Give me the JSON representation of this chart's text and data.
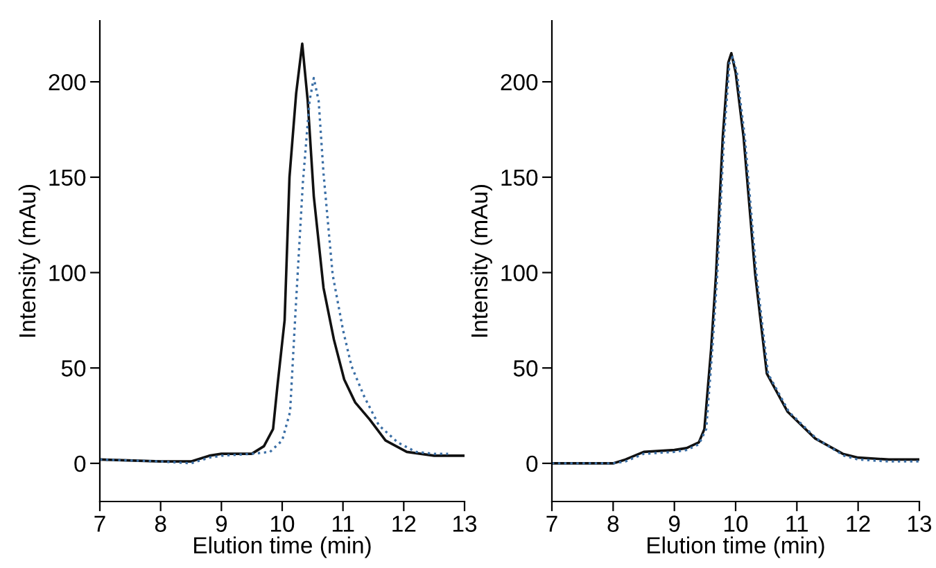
{
  "chart_data": [
    {
      "type": "line",
      "xlabel": "Elution time (min)",
      "ylabel": "Intensity (mAu)",
      "xlim": [
        7,
        13
      ],
      "ylim": [
        -20,
        232
      ],
      "xticks": [
        7,
        8,
        9,
        10,
        11,
        12,
        13
      ],
      "yticks": [
        0,
        50,
        100,
        150,
        200
      ],
      "grid": false,
      "marker": "none",
      "series": [
        {
          "color": "#111111",
          "line_style": "solid",
          "x": [
            7,
            8,
            8.5,
            8.8,
            9,
            9.5,
            9.7,
            9.85,
            9.92,
            10.04,
            10.12,
            10.23,
            10.33,
            10.42,
            10.52,
            10.68,
            10.85,
            11.02,
            11.2,
            11.44,
            11.7,
            12.05,
            12.5,
            13
          ],
          "values": [
            2,
            1,
            1,
            4,
            5,
            5,
            9,
            18,
            40,
            75,
            150,
            194,
            220,
            190,
            140,
            92,
            65,
            44,
            32,
            23,
            12,
            6,
            4,
            4
          ]
        },
        {
          "color": "#3a6ea5",
          "line_style": "dotted",
          "x": [
            7,
            8,
            8.5,
            8.8,
            9,
            9.5,
            9.8,
            10.0,
            10.13,
            10.22,
            10.34,
            10.45,
            10.52,
            10.6,
            10.68,
            10.83,
            11.0,
            11.14,
            11.35,
            11.59,
            11.9,
            12.2,
            12.5,
            12.73
          ],
          "values": [
            2,
            1,
            0,
            3,
            4,
            5,
            6,
            12,
            27,
            80,
            147,
            190,
            202,
            190,
            152,
            99,
            70,
            51,
            35,
            20,
            11,
            6,
            5,
            5
          ]
        }
      ]
    },
    {
      "type": "line",
      "xlabel": "Elution time (min)",
      "ylabel": "Intensity (mAu)",
      "xlim": [
        7,
        13
      ],
      "ylim": [
        -20,
        232
      ],
      "xticks": [
        7,
        8,
        9,
        10,
        11,
        12,
        13
      ],
      "yticks": [
        0,
        50,
        100,
        150,
        200
      ],
      "grid": false,
      "marker": "none",
      "series": [
        {
          "color": "#111111",
          "line_style": "solid",
          "x": [
            7,
            8,
            8.2,
            8.5,
            9,
            9.2,
            9.4,
            9.49,
            9.6,
            9.68,
            9.79,
            9.88,
            9.93,
            10.0,
            10.13,
            10.32,
            10.51,
            10.85,
            11.3,
            11.75,
            12,
            12.5,
            13
          ],
          "values": [
            0,
            0,
            2,
            6,
            7,
            8,
            11,
            18,
            60,
            99,
            171,
            210,
            215,
            205,
            171,
            99,
            47,
            27,
            13,
            5,
            3,
            2,
            2
          ]
        },
        {
          "color": "#3a6ea5",
          "line_style": "dotted",
          "x": [
            7,
            8,
            8.2,
            8.5,
            9,
            9.2,
            9.4,
            9.52,
            9.62,
            9.7,
            9.81,
            9.9,
            9.95,
            10.02,
            10.15,
            10.34,
            10.53,
            10.87,
            11.32,
            11.77,
            12,
            12.5,
            13
          ],
          "values": [
            0,
            0,
            1,
            5,
            6,
            7,
            10,
            18,
            60,
            99,
            171,
            210,
            213,
            205,
            171,
            99,
            47,
            27,
            13,
            4,
            2,
            1,
            1
          ]
        }
      ]
    }
  ]
}
